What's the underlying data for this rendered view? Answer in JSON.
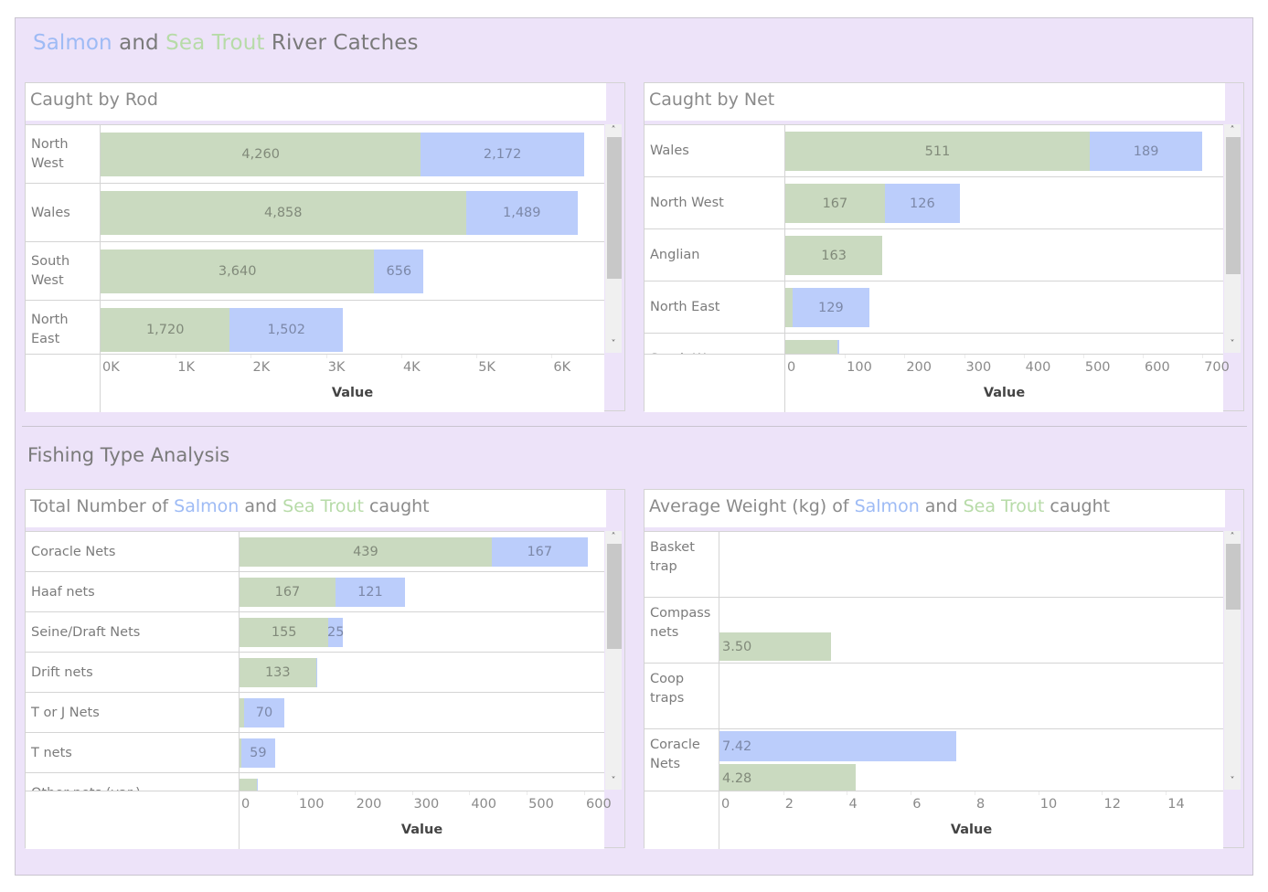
{
  "dashboard": {
    "title_parts": {
      "salmon": "Salmon",
      "and": " and ",
      "trout": "Sea Trout",
      "rest": " River Catches"
    },
    "section_title": "Fishing Type Analysis",
    "colors": {
      "salmon": "#bbcdfb",
      "sea_trout": "#cadac0",
      "background": "#ede3f9",
      "salmon_text": "#9ebbf5",
      "trout_text": "#b7dba8"
    }
  },
  "panels": {
    "rod": {
      "title": "Caught by Rod"
    },
    "net": {
      "title": "Caught by Net"
    },
    "total": {
      "title_parts": {
        "a": "Total Number of ",
        "salmon": "Salmon",
        "b": " and ",
        "trout": "Sea Trout",
        "c": " caught"
      }
    },
    "weight": {
      "title_parts": {
        "a": "Average Weight (kg)  of ",
        "salmon": "Salmon",
        "b": " and ",
        "trout": "Sea Trout",
        "c": " caught"
      }
    }
  },
  "scroll_icons": {
    "up": "chevron-up-icon",
    "down": "chevron-down-icon",
    "up_glyph": "⌃",
    "down_glyph": "⌄"
  },
  "chart_data": [
    {
      "id": "rod",
      "type": "bar",
      "orientation": "horizontal",
      "stacked": true,
      "title": "Caught by Rod",
      "xlabel": "Value",
      "categories": [
        [
          "North",
          "West"
        ],
        [
          "Wales"
        ],
        [
          "South",
          "West"
        ],
        [
          "North",
          "East"
        ]
      ],
      "series": [
        {
          "name": "Sea Trout",
          "values": [
            4260,
            4858,
            3640,
            1720
          ],
          "labels": [
            "4,260",
            "4,858",
            "3,640",
            "1,720"
          ]
        },
        {
          "name": "Salmon",
          "values": [
            2172,
            1489,
            656,
            1502
          ],
          "labels": [
            "2,172",
            "1,489",
            "656",
            "1,502"
          ]
        }
      ],
      "ticks": [
        0,
        1000,
        2000,
        3000,
        4000,
        5000,
        6000
      ],
      "tick_labels": [
        "0K",
        "1K",
        "2K",
        "3K",
        "4K",
        "5K",
        "6K"
      ],
      "xlim": [
        0,
        6700
      ],
      "grid": false
    },
    {
      "id": "net",
      "type": "bar",
      "orientation": "horizontal",
      "stacked": true,
      "title": "Caught by Net",
      "xlabel": "Value",
      "categories": [
        [
          "Wales"
        ],
        [
          "North West"
        ],
        [
          "Anglian"
        ],
        [
          "North East"
        ],
        [
          "South West"
        ]
      ],
      "series": [
        {
          "name": "Sea Trout",
          "values": [
            511,
            167,
            163,
            12,
            88
          ],
          "labels": [
            "511",
            "167",
            "163",
            "",
            ""
          ]
        },
        {
          "name": "Salmon",
          "values": [
            189,
            126,
            0,
            129,
            3
          ],
          "labels": [
            "189",
            "126",
            "",
            "129",
            ""
          ]
        }
      ],
      "ticks": [
        0,
        100,
        200,
        300,
        400,
        500,
        600,
        700
      ],
      "tick_labels": [
        "0",
        "100",
        "200",
        "300",
        "400",
        "500",
        "600",
        "700"
      ],
      "xlim": [
        0,
        735
      ],
      "grid": false
    },
    {
      "id": "total",
      "type": "bar",
      "orientation": "horizontal",
      "stacked": true,
      "title": "Total Number of Salmon and Sea Trout caught",
      "xlabel": "Value",
      "categories": [
        [
          "Coracle Nets"
        ],
        [
          "Haaf nets"
        ],
        [
          "Seine/Draft Nets"
        ],
        [
          "Drift nets"
        ],
        [
          "T or J Nets"
        ],
        [
          "T nets"
        ],
        [
          "Other nets (var.)"
        ]
      ],
      "series": [
        {
          "name": "Sea Trout",
          "values": [
            439,
            167,
            155,
            133,
            8,
            3,
            30
          ],
          "labels": [
            "439",
            "167",
            "155",
            "133",
            "",
            "",
            ""
          ]
        },
        {
          "name": "Salmon",
          "values": [
            167,
            121,
            25,
            1,
            70,
            59,
            1
          ],
          "labels": [
            "167",
            "121",
            "25",
            "",
            "70",
            "59",
            ""
          ]
        }
      ],
      "ticks": [
        0,
        100,
        200,
        300,
        400,
        500,
        600
      ],
      "tick_labels": [
        "0",
        "100",
        "200",
        "300",
        "400",
        "500",
        "600"
      ],
      "xlim": [
        0,
        635
      ],
      "grid": false
    },
    {
      "id": "weight",
      "type": "bar",
      "orientation": "horizontal",
      "stacked": false,
      "title": "Average Weight (kg) of Salmon and Sea Trout caught",
      "xlabel": "Value",
      "categories": [
        [
          "Basket",
          "trap"
        ],
        [
          "Compass",
          "nets"
        ],
        [
          "Coop",
          "traps"
        ],
        [
          "Coracle",
          "Nets"
        ]
      ],
      "series": [
        {
          "name": "Salmon",
          "values": [
            null,
            null,
            null,
            7.42
          ],
          "labels": [
            "",
            "",
            "",
            "7.42"
          ]
        },
        {
          "name": "Sea Trout",
          "values": [
            null,
            3.5,
            null,
            4.28
          ],
          "labels": [
            "",
            "3.50",
            "",
            "4.28"
          ]
        }
      ],
      "ticks": [
        0,
        2,
        4,
        6,
        8,
        10,
        12,
        14
      ],
      "tick_labels": [
        "0",
        "2",
        "4",
        "6",
        "8",
        "10",
        "12",
        "14"
      ],
      "xlim": [
        0,
        15.8
      ],
      "grid": false
    }
  ]
}
